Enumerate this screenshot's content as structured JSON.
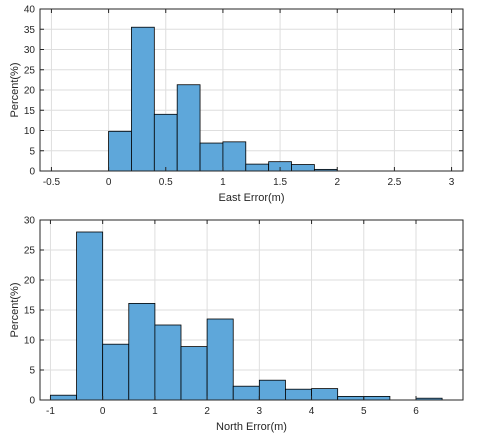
{
  "chart_data": [
    {
      "type": "bar",
      "title": "",
      "xlabel": "East Error(m)",
      "ylabel": "Percent(%)",
      "xlim": [
        -0.6,
        3.1
      ],
      "ylim": [
        0,
        40
      ],
      "xticks": [
        -0.5,
        0,
        0.5,
        1,
        1.5,
        2,
        2.5,
        3
      ],
      "xtick_labels": [
        "-0.5",
        "0",
        "0.5",
        "1",
        "1.5",
        "2",
        "2.5",
        "3"
      ],
      "yticks": [
        0,
        5,
        10,
        15,
        20,
        25,
        30,
        35,
        40
      ],
      "ytick_labels": [
        "0",
        "5",
        "10",
        "15",
        "20",
        "25",
        "30",
        "35",
        "40"
      ],
      "grid": true,
      "bar_color": "#5ea7da",
      "bins": [
        {
          "x0": 0.0,
          "x1": 0.2,
          "value": 9.8
        },
        {
          "x0": 0.2,
          "x1": 0.4,
          "value": 35.5
        },
        {
          "x0": 0.4,
          "x1": 0.6,
          "value": 14.0
        },
        {
          "x0": 0.6,
          "x1": 0.8,
          "value": 21.3
        },
        {
          "x0": 0.8,
          "x1": 1.0,
          "value": 6.9
        },
        {
          "x0": 1.0,
          "x1": 1.2,
          "value": 7.2
        },
        {
          "x0": 1.2,
          "x1": 1.4,
          "value": 1.7
        },
        {
          "x0": 1.4,
          "x1": 1.6,
          "value": 2.3
        },
        {
          "x0": 1.6,
          "x1": 1.8,
          "value": 1.6
        },
        {
          "x0": 1.8,
          "x1": 2.0,
          "value": 0.4
        }
      ]
    },
    {
      "type": "bar",
      "title": "",
      "xlabel": "North Error(m)",
      "ylabel": "Percent(%)",
      "xlim": [
        -1.2,
        6.9
      ],
      "ylim": [
        0,
        30
      ],
      "xticks": [
        -1,
        0,
        1,
        2,
        3,
        4,
        5,
        6
      ],
      "xtick_labels": [
        "-1",
        "0",
        "1",
        "2",
        "3",
        "4",
        "5",
        "6"
      ],
      "yticks": [
        0,
        5,
        10,
        15,
        20,
        25,
        30
      ],
      "ytick_labels": [
        "0",
        "5",
        "10",
        "15",
        "20",
        "25",
        "30"
      ],
      "grid": true,
      "bar_color": "#5ea7da",
      "bins": [
        {
          "x0": -1.0,
          "x1": -0.5,
          "value": 0.8
        },
        {
          "x0": -0.5,
          "x1": 0.0,
          "value": 28.0
        },
        {
          "x0": 0.0,
          "x1": 0.5,
          "value": 9.3
        },
        {
          "x0": 0.5,
          "x1": 1.0,
          "value": 16.1
        },
        {
          "x0": 1.0,
          "x1": 1.5,
          "value": 12.5
        },
        {
          "x0": 1.5,
          "x1": 2.0,
          "value": 8.9
        },
        {
          "x0": 2.0,
          "x1": 2.5,
          "value": 13.5
        },
        {
          "x0": 2.5,
          "x1": 3.0,
          "value": 2.3
        },
        {
          "x0": 3.0,
          "x1": 3.5,
          "value": 3.3
        },
        {
          "x0": 3.5,
          "x1": 4.0,
          "value": 1.8
        },
        {
          "x0": 4.0,
          "x1": 4.5,
          "value": 1.9
        },
        {
          "x0": 4.5,
          "x1": 5.0,
          "value": 0.6
        },
        {
          "x0": 5.0,
          "x1": 5.5,
          "value": 0.6
        },
        {
          "x0": 5.5,
          "x1": 6.0,
          "value": 0.0
        },
        {
          "x0": 6.0,
          "x1": 6.5,
          "value": 0.3
        }
      ]
    }
  ]
}
